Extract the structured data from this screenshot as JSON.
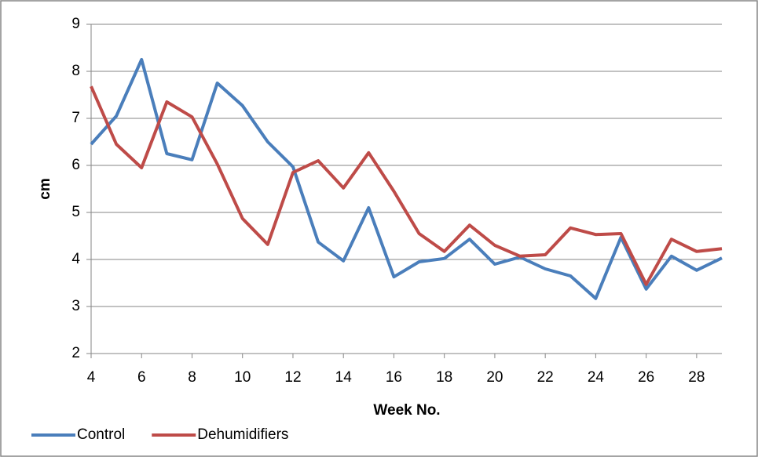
{
  "chart_data": {
    "type": "line",
    "x_label": "Week No.",
    "y_label": "cm",
    "x": [
      4,
      5,
      6,
      7,
      8,
      9,
      10,
      11,
      12,
      13,
      14,
      15,
      16,
      17,
      18,
      19,
      20,
      21,
      22,
      23,
      24,
      25,
      26,
      27,
      28,
      29
    ],
    "series": [
      {
        "name": "Control",
        "color": "#4a7ebb",
        "values": [
          6.45,
          7.05,
          8.25,
          6.25,
          6.12,
          7.75,
          7.27,
          6.5,
          5.97,
          4.37,
          3.97,
          5.1,
          3.63,
          3.95,
          4.02,
          4.43,
          3.9,
          4.05,
          3.8,
          3.65,
          3.17,
          4.47,
          3.37,
          4.07,
          3.77,
          4.03
        ]
      },
      {
        "name": "Dehumidifiers",
        "color": "#be4b48",
        "values": [
          7.68,
          6.45,
          5.95,
          7.35,
          7.03,
          6.03,
          4.87,
          4.32,
          5.85,
          6.1,
          5.52,
          6.27,
          5.45,
          4.55,
          4.17,
          4.73,
          4.3,
          4.07,
          4.1,
          4.67,
          4.53,
          4.55,
          3.47,
          4.43,
          4.17,
          4.23
        ]
      }
    ],
    "xlim": [
      4,
      29
    ],
    "xticks": [
      4,
      6,
      8,
      10,
      12,
      14,
      16,
      18,
      20,
      22,
      24,
      26,
      28
    ],
    "ylim": [
      2,
      9
    ],
    "yticks": [
      2,
      3,
      4,
      5,
      6,
      7,
      8,
      9
    ],
    "grid": true,
    "legend": "bottom-left"
  }
}
